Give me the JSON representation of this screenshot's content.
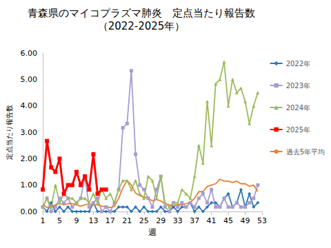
{
  "chart_data": {
    "type": "line",
    "title": "青森県のマイコプラズマ肺炎　定点当たり報告数",
    "subtitle": "（2022-2025年）",
    "x_label": "週",
    "y_label": "定点当たり報告数",
    "x": [
      1,
      2,
      3,
      4,
      5,
      6,
      7,
      8,
      9,
      10,
      11,
      12,
      13,
      14,
      15,
      16,
      17,
      18,
      19,
      20,
      21,
      22,
      23,
      24,
      25,
      26,
      27,
      28,
      29,
      30,
      31,
      32,
      33,
      34,
      35,
      36,
      37,
      38,
      39,
      40,
      41,
      42,
      43,
      44,
      45,
      46,
      47,
      48,
      49,
      50,
      51,
      52
    ],
    "series": [
      {
        "name": "2022年",
        "color": "#2E75B6",
        "marker": "diamond",
        "line_style": "solid",
        "values": [
          0.17,
          0,
          0.33,
          0,
          0.17,
          0,
          0.17,
          0,
          0,
          0,
          0,
          0,
          0.33,
          0,
          0,
          0,
          0,
          0,
          0.17,
          0.17,
          0.17,
          0,
          0.17,
          0,
          0.17,
          0,
          0,
          0,
          0.17,
          0,
          0,
          0.17,
          0,
          0.17,
          0.17,
          0.33,
          0,
          0.17,
          0,
          0.17,
          0.33,
          0.33,
          0.17,
          0.5,
          0.67,
          0.17,
          0.33,
          0.83,
          0.17,
          0.67,
          0.17,
          0.33
        ]
      },
      {
        "name": "2023年",
        "color": "#A99BD1",
        "marker": "square",
        "line_style": "solid",
        "values": [
          0.17,
          0.5,
          0,
          0.17,
          0.5,
          0.33,
          0.5,
          0.17,
          0.33,
          0.5,
          1.33,
          0.17,
          0.33,
          0.5,
          0,
          0.17,
          0,
          0.33,
          0.83,
          3.17,
          3.33,
          5.33,
          2.17,
          1.0,
          0.83,
          0.5,
          0.17,
          0.83,
          1.33,
          0.17,
          0,
          0.33,
          0.17,
          0.33,
          0.17,
          0.33,
          0.17,
          0.5,
          0.67,
          0.33,
          0.83,
          0.17,
          0.17,
          0.5,
          0.17,
          0.17,
          0.33,
          0.17,
          0.17,
          0.33,
          0.5,
          1.0
        ]
      },
      {
        "name": "2024年",
        "color": "#9BBB59",
        "marker": "triangle",
        "line_style": "solid",
        "values": [
          0.17,
          0.5,
          0.17,
          1.0,
          0.33,
          0.67,
          0.5,
          0.5,
          0.33,
          0.5,
          0.5,
          0.33,
          0.67,
          0.33,
          0.83,
          0.5,
          0.67,
          0.33,
          0.83,
          1.17,
          1.17,
          0.83,
          1.17,
          0.67,
          0.5,
          1.33,
          1.17,
          0.5,
          1.33,
          0.33,
          0.17,
          0.33,
          0.33,
          0.83,
          0.67,
          0.5,
          1.33,
          2.5,
          1.83,
          4.17,
          2.5,
          4.83,
          5.0,
          5.67,
          4.0,
          5.0,
          4.5,
          4.67,
          4.17,
          3.33,
          4.0,
          4.5
        ]
      },
      {
        "name": "2025年",
        "color": "#FF0000",
        "marker": "square",
        "line_style": "solid",
        "values": [
          0.83,
          2.67,
          1.67,
          1.5,
          2.0,
          0.67,
          1.0,
          1.0,
          1.5,
          1.0,
          1.33,
          0.83,
          2.17,
          0.67,
          0.83,
          0.83,
          null,
          null,
          null,
          null,
          null,
          null,
          null,
          null,
          null,
          null,
          null,
          null,
          null,
          null,
          null,
          null,
          null,
          null,
          null,
          null,
          null,
          null,
          null,
          null,
          null,
          null,
          null,
          null,
          null,
          null,
          null,
          null,
          null,
          null,
          null,
          null
        ]
      },
      {
        "name": "過去5年平均",
        "color": "#ED7D31",
        "marker": "none",
        "line_style": "solid",
        "values": [
          0.27,
          0.15,
          0.2,
          0.25,
          0.3,
          0.25,
          0.3,
          0.3,
          0.25,
          0.2,
          0.25,
          0.3,
          0.25,
          0.25,
          0.2,
          0.18,
          0.15,
          0.2,
          0.5,
          0.9,
          1.17,
          1.0,
          0.7,
          0.6,
          0.55,
          0.5,
          0.4,
          0.45,
          0.4,
          0.3,
          0.25,
          0.2,
          0.25,
          0.25,
          0.3,
          0.35,
          0.5,
          0.75,
          0.75,
          0.95,
          1.0,
          1.05,
          1.22,
          1.15,
          1.15,
          1.1,
          1.15,
          1.05,
          1.05,
          0.95,
          1.0,
          0.75
        ]
      }
    ],
    "xlim": [
      1,
      53
    ],
    "xticks": [
      1,
      5,
      9,
      13,
      17,
      21,
      25,
      29,
      33,
      37,
      41,
      45,
      49,
      53
    ],
    "ylim": [
      0,
      6
    ],
    "yticks": [
      {
        "value": 0,
        "label": "0.00"
      },
      {
        "value": 1,
        "label": "1.00"
      },
      {
        "value": 2,
        "label": "2.00"
      },
      {
        "value": 3,
        "label": "3.00"
      },
      {
        "value": 4,
        "label": "4.00"
      },
      {
        "value": 5,
        "label": "5.00"
      },
      {
        "value": 6,
        "label": "6.00"
      }
    ],
    "grid": false,
    "legend": "right"
  }
}
